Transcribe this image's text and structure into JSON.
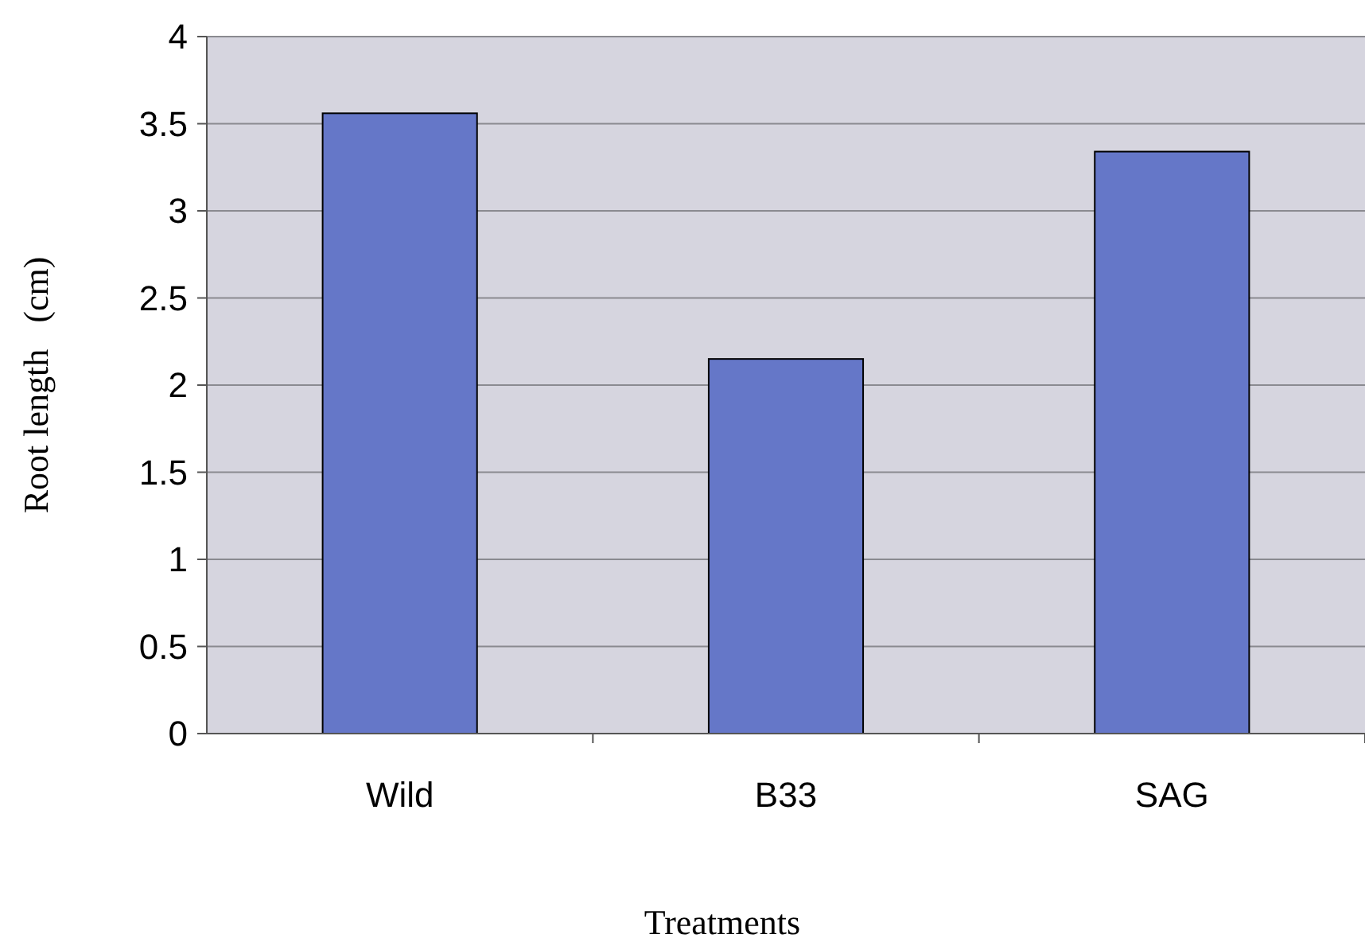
{
  "chart_data": {
    "type": "bar",
    "xlabel": "Treatments",
    "ylabel": "Root length   (cm)",
    "categories": [
      "Wild",
      "B33",
      "SAG"
    ],
    "series": [
      {
        "color": "#6577c8",
        "values": [
          3.56,
          2.15,
          3.34
        ]
      }
    ],
    "ylim": [
      0,
      4
    ],
    "yticks": [
      0,
      0.5,
      1,
      1.5,
      2,
      2.5,
      3,
      3.5,
      4
    ],
    "grid": "y"
  }
}
